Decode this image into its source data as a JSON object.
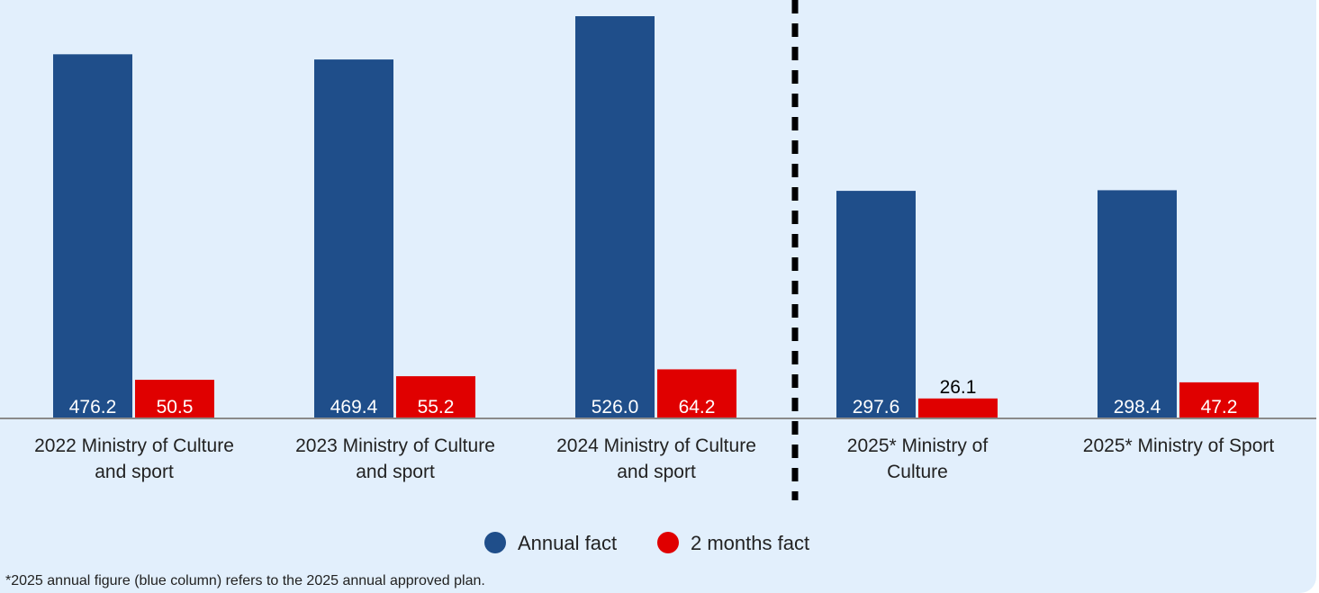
{
  "chart_data": {
    "type": "bar",
    "categories": [
      [
        "2022 Ministry of Culture",
        "and sport"
      ],
      [
        "2023 Ministry of Culture",
        "and sport"
      ],
      [
        "2024 Ministry of Culture",
        "and sport"
      ],
      [
        "2025* Ministry of",
        "Culture"
      ],
      [
        "2025* Ministry of Sport"
      ]
    ],
    "series": [
      {
        "name": "Annual fact",
        "color": "#1f4e8a",
        "values": [
          476.2,
          469.4,
          526.0,
          297.6,
          298.4
        ],
        "labels": [
          "476.2",
          "469.4",
          "526.0",
          "297.6",
          "298.4"
        ]
      },
      {
        "name": "2 months fact",
        "color": "#e00000",
        "values": [
          50.5,
          55.2,
          64.2,
          26.1,
          47.2
        ],
        "labels": [
          "50.5",
          "55.2",
          "64.2",
          "26.1",
          "47.2"
        ]
      }
    ],
    "title": "",
    "xlabel": "",
    "ylabel": "",
    "ylim": [
      0,
      540
    ],
    "grid": false,
    "legend": "bottom-center",
    "separator_after_category": 3
  },
  "footnote": "*2025 annual figure (blue column) refers to the 2025 annual approved plan."
}
